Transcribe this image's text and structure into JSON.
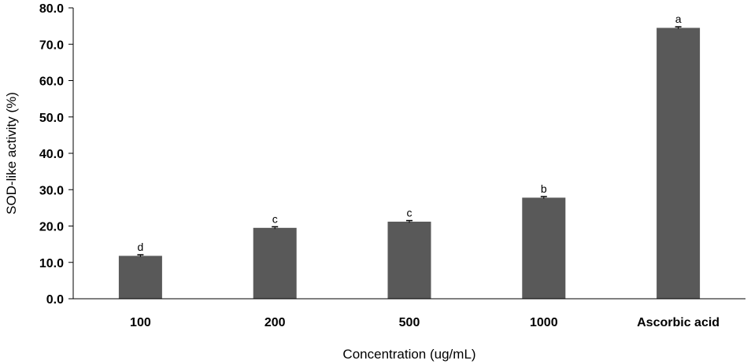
{
  "chart_data": {
    "type": "bar",
    "categories": [
      "100",
      "200",
      "500",
      "1000",
      "Ascorbic acid"
    ],
    "values": [
      11.8,
      19.5,
      21.2,
      27.8,
      74.5
    ],
    "errors": [
      0.3,
      0.3,
      0.3,
      0.3,
      0.3
    ],
    "significance": [
      "d",
      "c",
      "c",
      "b",
      "a"
    ],
    "xlabel": "Concentration (ug/mL)",
    "ylabel": "SOD-like activity (%)",
    "ylim": [
      0,
      80
    ],
    "yticks": [
      "0.0",
      "10.0",
      "20.0",
      "30.0",
      "40.0",
      "50.0",
      "60.0",
      "70.0",
      "80.0"
    ],
    "grid": false,
    "legend": "none",
    "colors": {
      "bar": "#595959",
      "axis": "#000000"
    }
  }
}
